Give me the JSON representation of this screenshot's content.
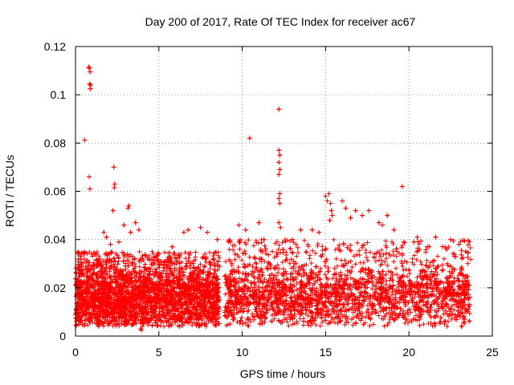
{
  "chart_data": {
    "type": "scatter",
    "title": "Day 200 of 2017, Rate Of TEC Index for receiver ac67",
    "xlabel": "GPS time / hours",
    "ylabel": "ROTI / TECUs",
    "xlim": [
      0,
      25
    ],
    "ylim": [
      0,
      0.12
    ],
    "xticks": [
      0,
      5,
      10,
      15,
      20,
      25
    ],
    "xtick_labels": [
      "0",
      "5",
      "10",
      "15",
      "20",
      "25"
    ],
    "yticks": [
      0,
      0.02,
      0.04,
      0.06,
      0.08,
      0.1,
      0.12
    ],
    "ytick_labels": [
      "0",
      "0.02",
      "0.04",
      "0.06",
      "0.08",
      "0.1",
      "0.12"
    ],
    "grid": true,
    "marker": "plus",
    "color": "#ff0000",
    "series": [
      {
        "name": "ROTI",
        "points": [
          [
            0.55,
            0.0812
          ],
          [
            0.8,
            0.1115
          ],
          [
            0.83,
            0.111
          ],
          [
            0.87,
            0.1095
          ],
          [
            0.85,
            0.1045
          ],
          [
            0.88,
            0.1025
          ],
          [
            0.9,
            0.104
          ],
          [
            0.82,
            0.066
          ],
          [
            0.86,
            0.061
          ],
          [
            2.3,
            0.07
          ],
          [
            2.35,
            0.063
          ],
          [
            2.32,
            0.0615
          ],
          [
            2.25,
            0.052
          ],
          [
            3.2,
            0.054
          ],
          [
            3.15,
            0.053
          ],
          [
            3.3,
            0.043
          ],
          [
            3.6,
            0.047
          ],
          [
            3.8,
            0.044
          ],
          [
            1.7,
            0.043
          ],
          [
            1.85,
            0.041
          ],
          [
            2.1,
            0.038
          ],
          [
            2.6,
            0.039
          ],
          [
            2.9,
            0.046
          ],
          [
            3.9,
            0.003
          ],
          [
            4.0,
            0.004
          ],
          [
            3.95,
            0.0025
          ],
          [
            5.8,
            0.037
          ],
          [
            6.5,
            0.043
          ],
          [
            6.75,
            0.044
          ],
          [
            7.5,
            0.045
          ],
          [
            7.9,
            0.043
          ],
          [
            8.5,
            0.04
          ],
          [
            9.8,
            0.046
          ],
          [
            10.2,
            0.044
          ],
          [
            10.45,
            0.082
          ],
          [
            11.0,
            0.047
          ],
          [
            11.3,
            0.04
          ],
          [
            12.2,
            0.094
          ],
          [
            12.2,
            0.077
          ],
          [
            12.25,
            0.075
          ],
          [
            12.2,
            0.072
          ],
          [
            12.25,
            0.069
          ],
          [
            12.2,
            0.067
          ],
          [
            12.25,
            0.059
          ],
          [
            12.2,
            0.057
          ],
          [
            12.25,
            0.055
          ],
          [
            12.2,
            0.047
          ],
          [
            12.3,
            0.045
          ],
          [
            13.0,
            0.04
          ],
          [
            13.5,
            0.044
          ],
          [
            14.2,
            0.044
          ],
          [
            14.6,
            0.043
          ],
          [
            15.0,
            0.058
          ],
          [
            15.1,
            0.056
          ],
          [
            15.2,
            0.059
          ],
          [
            15.3,
            0.055
          ],
          [
            15.35,
            0.052
          ],
          [
            15.4,
            0.05
          ],
          [
            15.25,
            0.048
          ],
          [
            16.0,
            0.056
          ],
          [
            16.2,
            0.053
          ],
          [
            16.5,
            0.049
          ],
          [
            16.8,
            0.052
          ],
          [
            17.2,
            0.05
          ],
          [
            17.6,
            0.052
          ],
          [
            18.2,
            0.047
          ],
          [
            18.4,
            0.046
          ],
          [
            18.7,
            0.05
          ],
          [
            19.6,
            0.062
          ],
          [
            19.1,
            0.044
          ],
          [
            20.3,
            0.039
          ],
          [
            20.5,
            0.041
          ],
          [
            21.1,
            0.037
          ],
          [
            21.6,
            0.041
          ],
          [
            22.5,
            0.04
          ],
          [
            23.0,
            0.038
          ],
          [
            23.4,
            0.035
          ]
        ],
        "bands": [
          {
            "x_from": 0.0,
            "x_to": 8.65,
            "baseline_mean": 0.015,
            "spread": 0.012,
            "spike_max": 0.035,
            "count": 3200
          },
          {
            "x_from": 8.95,
            "x_to": 23.7,
            "baseline_mean": 0.016,
            "spread": 0.012,
            "spike_max": 0.04,
            "count": 5200
          }
        ]
      }
    ]
  }
}
